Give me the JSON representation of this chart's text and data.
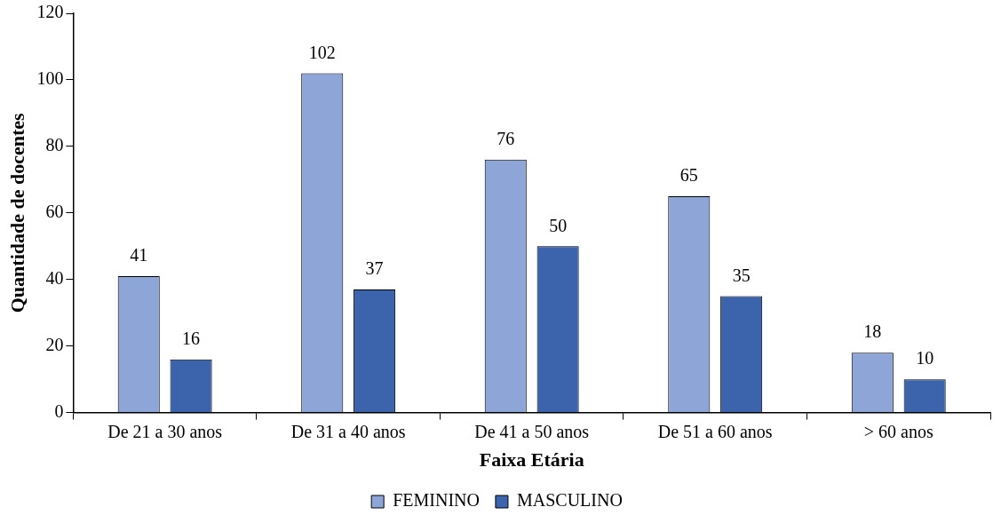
{
  "chart_data": {
    "type": "bar",
    "xlabel": "Faixa Etária",
    "ylabel": "Quantidade de docentes",
    "categories": [
      "De 21 a 30 anos",
      "De 31 a 40 anos",
      "De 41 a 50 anos",
      "De 51 a 60 anos",
      "> 60 anos"
    ],
    "series": [
      {
        "name": "FEMININO",
        "color": "#8ea5d8",
        "values": [
          41,
          102,
          76,
          65,
          18
        ]
      },
      {
        "name": "MASCULINO",
        "color": "#3c64ad",
        "values": [
          16,
          37,
          50,
          35,
          10
        ]
      }
    ],
    "ylim": [
      0,
      120
    ],
    "yticks": [
      0,
      20,
      40,
      60,
      80,
      100,
      120
    ],
    "grid": false,
    "legend": "bottom",
    "data_labels": true
  }
}
